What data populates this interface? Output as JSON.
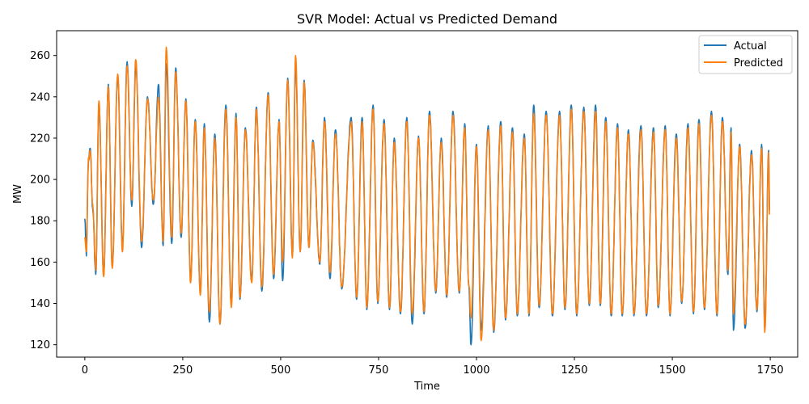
{
  "chart_data": {
    "type": "line",
    "title": "SVR Model: Actual vs Predicted Demand",
    "xlabel": "Time",
    "ylabel": "MW",
    "xlim": [
      -72,
      1820
    ],
    "ylim": [
      114,
      272
    ],
    "xticks": [
      0,
      250,
      500,
      750,
      1000,
      1250,
      1500,
      1750
    ],
    "yticks": [
      120,
      140,
      160,
      180,
      200,
      220,
      240,
      260
    ],
    "xtick_labels": [
      "0",
      "250",
      "500",
      "750",
      "1000",
      "1250",
      "1500",
      "1750"
    ],
    "ytick_labels": [
      "120",
      "140",
      "160",
      "180",
      "200",
      "220",
      "240",
      "260"
    ],
    "grid": false,
    "legend": "top-right",
    "n_points": 1748,
    "series": [
      {
        "name": "Actual",
        "color": "#1f77b4",
        "extrema": [
          [
            0,
            181
          ],
          [
            4,
            163
          ],
          [
            9,
            208
          ],
          [
            14,
            215
          ],
          [
            20,
            186
          ],
          [
            28,
            154
          ],
          [
            36,
            237
          ],
          [
            48,
            154
          ],
          [
            60,
            246
          ],
          [
            70,
            158
          ],
          [
            84,
            250
          ],
          [
            96,
            168
          ],
          [
            108,
            257
          ],
          [
            120,
            187
          ],
          [
            130,
            255
          ],
          [
            145,
            167
          ],
          [
            160,
            240
          ],
          [
            175,
            188
          ],
          [
            188,
            246
          ],
          [
            200,
            168
          ],
          [
            208,
            256
          ],
          [
            222,
            169
          ],
          [
            232,
            254
          ],
          [
            246,
            172
          ],
          [
            258,
            239
          ],
          [
            270,
            152
          ],
          [
            282,
            229
          ],
          [
            295,
            145
          ],
          [
            305,
            227
          ],
          [
            318,
            131
          ],
          [
            332,
            222
          ],
          [
            345,
            130
          ],
          [
            360,
            236
          ],
          [
            374,
            140
          ],
          [
            386,
            232
          ],
          [
            396,
            142
          ],
          [
            410,
            225
          ],
          [
            426,
            151
          ],
          [
            438,
            235
          ],
          [
            452,
            146
          ],
          [
            468,
            242
          ],
          [
            482,
            152
          ],
          [
            496,
            229
          ],
          [
            505,
            151
          ],
          [
            518,
            249
          ],
          [
            530,
            163
          ],
          [
            538,
            256
          ],
          [
            550,
            165
          ],
          [
            560,
            248
          ],
          [
            572,
            168
          ],
          [
            582,
            219
          ],
          [
            600,
            159
          ],
          [
            612,
            230
          ],
          [
            626,
            152
          ],
          [
            640,
            224
          ],
          [
            656,
            147
          ],
          [
            680,
            230
          ],
          [
            694,
            142
          ],
          [
            708,
            230
          ],
          [
            720,
            137
          ],
          [
            736,
            236
          ],
          [
            748,
            140
          ],
          [
            764,
            229
          ],
          [
            778,
            137
          ],
          [
            790,
            220
          ],
          [
            806,
            135
          ],
          [
            822,
            230
          ],
          [
            836,
            130
          ],
          [
            852,
            221
          ],
          [
            866,
            135
          ],
          [
            880,
            233
          ],
          [
            896,
            145
          ],
          [
            910,
            220
          ],
          [
            924,
            143
          ],
          [
            940,
            233
          ],
          [
            956,
            145
          ],
          [
            970,
            227
          ],
          [
            980,
            149
          ],
          [
            986,
            120
          ],
          [
            1000,
            217
          ],
          [
            1012,
            127
          ],
          [
            1030,
            226
          ],
          [
            1044,
            126
          ],
          [
            1062,
            228
          ],
          [
            1074,
            132
          ],
          [
            1092,
            225
          ],
          [
            1104,
            134
          ],
          [
            1122,
            222
          ],
          [
            1134,
            134
          ],
          [
            1146,
            236
          ],
          [
            1160,
            138
          ],
          [
            1178,
            233
          ],
          [
            1194,
            134
          ],
          [
            1212,
            233
          ],
          [
            1226,
            137
          ],
          [
            1242,
            236
          ],
          [
            1256,
            134
          ],
          [
            1274,
            235
          ],
          [
            1288,
            139
          ],
          [
            1304,
            236
          ],
          [
            1316,
            139
          ],
          [
            1330,
            230
          ],
          [
            1344,
            134
          ],
          [
            1360,
            227
          ],
          [
            1372,
            134
          ],
          [
            1388,
            224
          ],
          [
            1402,
            134
          ],
          [
            1420,
            226
          ],
          [
            1434,
            134
          ],
          [
            1452,
            225
          ],
          [
            1464,
            138
          ],
          [
            1482,
            226
          ],
          [
            1494,
            134
          ],
          [
            1510,
            222
          ],
          [
            1524,
            140
          ],
          [
            1540,
            227
          ],
          [
            1554,
            135
          ],
          [
            1568,
            229
          ],
          [
            1582,
            137
          ],
          [
            1600,
            233
          ],
          [
            1614,
            134
          ],
          [
            1628,
            230
          ],
          [
            1642,
            154
          ],
          [
            1650,
            225
          ],
          [
            1656,
            127
          ],
          [
            1672,
            217
          ],
          [
            1686,
            128
          ],
          [
            1702,
            214
          ],
          [
            1716,
            136
          ],
          [
            1728,
            217
          ],
          [
            1736,
            127
          ],
          [
            1746,
            214
          ],
          [
            1748,
            185
          ]
        ]
      },
      {
        "name": "Predicted",
        "color": "#ff7f0e",
        "extrema": [
          [
            0,
            172
          ],
          [
            4,
            165
          ],
          [
            9,
            210
          ],
          [
            14,
            213
          ],
          [
            20,
            188
          ],
          [
            28,
            156
          ],
          [
            36,
            238
          ],
          [
            48,
            153
          ],
          [
            60,
            245
          ],
          [
            70,
            157
          ],
          [
            84,
            251
          ],
          [
            96,
            165
          ],
          [
            108,
            255
          ],
          [
            120,
            190
          ],
          [
            130,
            258
          ],
          [
            145,
            170
          ],
          [
            160,
            239
          ],
          [
            175,
            190
          ],
          [
            188,
            240
          ],
          [
            200,
            170
          ],
          [
            208,
            264
          ],
          [
            222,
            172
          ],
          [
            232,
            252
          ],
          [
            246,
            174
          ],
          [
            258,
            238
          ],
          [
            270,
            150
          ],
          [
            282,
            228
          ],
          [
            295,
            144
          ],
          [
            305,
            225
          ],
          [
            318,
            136
          ],
          [
            332,
            220
          ],
          [
            345,
            130
          ],
          [
            360,
            234
          ],
          [
            374,
            138
          ],
          [
            386,
            230
          ],
          [
            396,
            143
          ],
          [
            410,
            224
          ],
          [
            426,
            150
          ],
          [
            438,
            234
          ],
          [
            452,
            148
          ],
          [
            468,
            241
          ],
          [
            482,
            154
          ],
          [
            496,
            228
          ],
          [
            505,
            160
          ],
          [
            518,
            248
          ],
          [
            530,
            162
          ],
          [
            538,
            260
          ],
          [
            550,
            165
          ],
          [
            560,
            247
          ],
          [
            572,
            167
          ],
          [
            582,
            218
          ],
          [
            600,
            160
          ],
          [
            612,
            228
          ],
          [
            626,
            155
          ],
          [
            640,
            222
          ],
          [
            656,
            148
          ],
          [
            680,
            228
          ],
          [
            694,
            143
          ],
          [
            708,
            228
          ],
          [
            720,
            138
          ],
          [
            736,
            234
          ],
          [
            748,
            141
          ],
          [
            764,
            227
          ],
          [
            778,
            138
          ],
          [
            790,
            218
          ],
          [
            806,
            136
          ],
          [
            822,
            228
          ],
          [
            836,
            135
          ],
          [
            852,
            220
          ],
          [
            866,
            136
          ],
          [
            880,
            231
          ],
          [
            896,
            146
          ],
          [
            910,
            218
          ],
          [
            924,
            144
          ],
          [
            940,
            231
          ],
          [
            956,
            146
          ],
          [
            970,
            225
          ],
          [
            980,
            150
          ],
          [
            986,
            133
          ],
          [
            1000,
            216
          ],
          [
            1012,
            122
          ],
          [
            1030,
            224
          ],
          [
            1044,
            127
          ],
          [
            1062,
            226
          ],
          [
            1074,
            133
          ],
          [
            1092,
            223
          ],
          [
            1104,
            135
          ],
          [
            1122,
            220
          ],
          [
            1134,
            135
          ],
          [
            1146,
            232
          ],
          [
            1160,
            139
          ],
          [
            1178,
            231
          ],
          [
            1194,
            135
          ],
          [
            1212,
            231
          ],
          [
            1226,
            138
          ],
          [
            1242,
            234
          ],
          [
            1256,
            135
          ],
          [
            1274,
            233
          ],
          [
            1288,
            140
          ],
          [
            1304,
            233
          ],
          [
            1316,
            140
          ],
          [
            1330,
            228
          ],
          [
            1344,
            135
          ],
          [
            1360,
            225
          ],
          [
            1372,
            135
          ],
          [
            1388,
            222
          ],
          [
            1402,
            135
          ],
          [
            1420,
            224
          ],
          [
            1434,
            135
          ],
          [
            1452,
            223
          ],
          [
            1464,
            139
          ],
          [
            1482,
            224
          ],
          [
            1494,
            135
          ],
          [
            1510,
            220
          ],
          [
            1524,
            141
          ],
          [
            1540,
            225
          ],
          [
            1554,
            136
          ],
          [
            1568,
            227
          ],
          [
            1582,
            138
          ],
          [
            1600,
            231
          ],
          [
            1614,
            135
          ],
          [
            1628,
            228
          ],
          [
            1642,
            156
          ],
          [
            1650,
            223
          ],
          [
            1656,
            135
          ],
          [
            1672,
            216
          ],
          [
            1686,
            130
          ],
          [
            1702,
            212
          ],
          [
            1716,
            137
          ],
          [
            1728,
            215
          ],
          [
            1736,
            126
          ],
          [
            1746,
            213
          ],
          [
            1748,
            183
          ]
        ]
      }
    ]
  }
}
